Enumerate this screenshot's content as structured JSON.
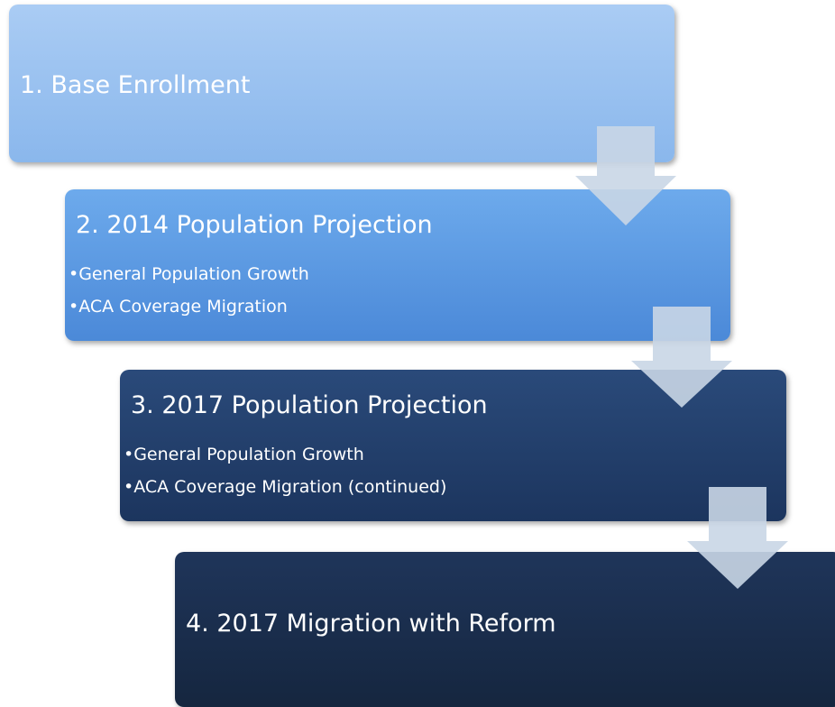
{
  "steps": [
    {
      "title": "1. Base Enrollment",
      "bullets": []
    },
    {
      "title": "2. 2014 Population Projection",
      "bullets": [
        "•General Population Growth",
        "•ACA Coverage Migration"
      ]
    },
    {
      "title": "3. 2017 Population Projection",
      "bullets": [
        "•General Population Growth",
        "•ACA Coverage Migration (continued)"
      ]
    },
    {
      "title": "4. 2017 Migration with Reform",
      "bullets": []
    }
  ]
}
